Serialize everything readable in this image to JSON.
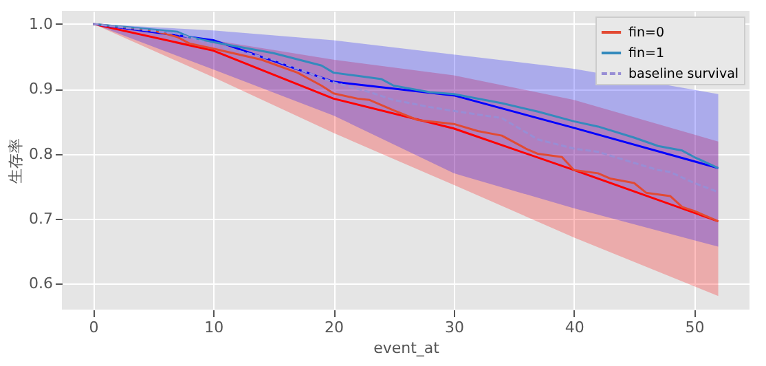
{
  "chart_data": {
    "type": "line",
    "xlabel": "event_at",
    "ylabel": "生存率",
    "xlim": [
      -2.6,
      54.6
    ],
    "ylim": [
      0.56,
      1.02
    ],
    "xticks": [
      0,
      10,
      20,
      30,
      40,
      50
    ],
    "yticks": [
      0.6,
      0.7,
      0.8,
      0.9,
      {
        "value": 1,
        "label": "1.0"
      }
    ],
    "grid": true,
    "legend": "top right",
    "marker": "none",
    "series": [
      {
        "color": "#ff0000",
        "line_style": "solid",
        "x": [
          0,
          10,
          20,
          30,
          40,
          52
        ],
        "values": [
          1.0,
          0.959,
          0.885,
          0.839,
          0.775,
          0.696
        ],
        "lower": [
          1.0,
          0.918,
          0.832,
          0.752,
          0.671,
          0.581
        ],
        "upper": [
          1.0,
          0.975,
          0.945,
          0.921,
          0.883,
          0.819
        ]
      },
      {
        "color": "#0000ff",
        "line_style": "solid",
        "x": [
          0,
          10,
          20,
          30,
          40,
          52
        ],
        "values": [
          1.0,
          0.975,
          0.911,
          0.89,
          0.84,
          0.778
        ],
        "lower": [
          1.0,
          0.93,
          0.859,
          0.77,
          0.716,
          0.657
        ],
        "upper": [
          1.0,
          0.99,
          0.975,
          0.953,
          0.931,
          0.892
        ]
      },
      {
        "name": "fin=0",
        "color": "#e24a33",
        "line_style": "solid",
        "x": [
          0,
          5,
          7,
          8,
          10,
          14,
          17,
          19,
          20,
          22,
          23,
          25,
          27,
          30,
          32,
          34,
          36,
          37,
          39,
          40,
          42,
          43,
          45,
          46,
          48,
          49,
          50,
          52
        ],
        "values": [
          1.0,
          0.99,
          0.98,
          0.97,
          0.962,
          0.945,
          0.925,
          0.905,
          0.893,
          0.885,
          0.883,
          0.867,
          0.852,
          0.846,
          0.835,
          0.828,
          0.808,
          0.8,
          0.795,
          0.775,
          0.77,
          0.762,
          0.755,
          0.74,
          0.735,
          0.718,
          0.712,
          0.696
        ]
      },
      {
        "name": "fin=1",
        "color": "#348abd",
        "line_style": "solid",
        "x": [
          0,
          7,
          8,
          10,
          15,
          19,
          20,
          22,
          24,
          25,
          28,
          30,
          34,
          37,
          40,
          42,
          45,
          47,
          49,
          50,
          52
        ],
        "values": [
          1.0,
          0.988,
          0.98,
          0.972,
          0.955,
          0.936,
          0.925,
          0.92,
          0.915,
          0.905,
          0.895,
          0.892,
          0.878,
          0.865,
          0.85,
          0.842,
          0.825,
          0.812,
          0.805,
          0.795,
          0.778
        ]
      },
      {
        "name": "baseline survival",
        "color": "#988ed5",
        "line_style": "dashed",
        "x": [
          0,
          7,
          10,
          15,
          20,
          23,
          25,
          28,
          30,
          34,
          37,
          40,
          42,
          45,
          47,
          48,
          50,
          52
        ],
        "values": [
          1.0,
          0.985,
          0.968,
          0.945,
          0.91,
          0.895,
          0.883,
          0.872,
          0.866,
          0.855,
          0.822,
          0.808,
          0.803,
          0.786,
          0.775,
          0.772,
          0.755,
          0.741
        ]
      }
    ]
  }
}
